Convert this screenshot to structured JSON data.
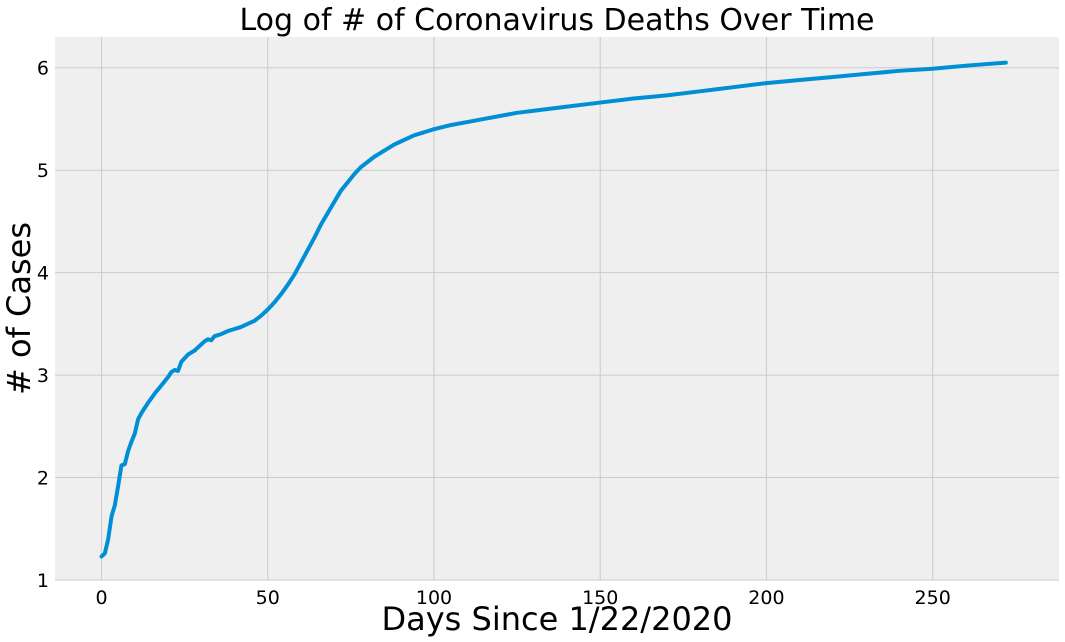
{
  "chart_data": {
    "type": "line",
    "title": "Log of # of Coronavirus Deaths Over Time",
    "xlabel": "Days Since 1/22/2020",
    "ylabel": "# of Cases",
    "xlim": [
      -14,
      288
    ],
    "ylim": [
      1,
      6.3
    ],
    "xticks": [
      0,
      50,
      100,
      150,
      200,
      250
    ],
    "yticks": [
      1,
      2,
      3,
      4,
      5,
      6
    ],
    "grid": true,
    "legend": "none",
    "colors": {
      "plot_background": "#efefef",
      "grid": "#cbcbcb",
      "line": "#008fd5"
    },
    "series": [
      {
        "x": [
          0,
          1,
          2,
          3,
          4,
          5,
          6,
          7,
          8,
          9,
          10,
          11,
          12,
          14,
          16,
          18,
          20,
          21,
          22,
          23,
          24,
          26,
          28,
          29,
          30,
          31,
          32,
          33,
          34,
          36,
          38,
          40,
          42,
          44,
          46,
          48,
          50,
          52,
          54,
          56,
          58,
          60,
          62,
          64,
          66,
          68,
          70,
          72,
          74,
          76,
          78,
          80,
          82,
          84,
          86,
          88,
          90,
          92,
          94,
          96,
          98,
          100,
          105,
          110,
          115,
          120,
          125,
          130,
          140,
          150,
          160,
          170,
          180,
          185,
          190,
          200,
          210,
          220,
          230,
          240,
          250,
          260,
          272
        ],
        "y": [
          1.23,
          1.26,
          1.4,
          1.62,
          1.73,
          1.92,
          2.12,
          2.13,
          2.26,
          2.35,
          2.43,
          2.57,
          2.63,
          2.73,
          2.82,
          2.9,
          2.98,
          3.03,
          3.05,
          3.04,
          3.13,
          3.2,
          3.24,
          3.27,
          3.3,
          3.33,
          3.35,
          3.34,
          3.38,
          3.4,
          3.43,
          3.45,
          3.47,
          3.5,
          3.53,
          3.58,
          3.64,
          3.71,
          3.79,
          3.88,
          3.98,
          4.1,
          4.22,
          4.34,
          4.47,
          4.58,
          4.69,
          4.8,
          4.88,
          4.96,
          5.03,
          5.08,
          5.13,
          5.17,
          5.21,
          5.25,
          5.28,
          5.31,
          5.34,
          5.36,
          5.38,
          5.4,
          5.44,
          5.47,
          5.5,
          5.53,
          5.56,
          5.58,
          5.62,
          5.66,
          5.7,
          5.73,
          5.77,
          5.79,
          5.81,
          5.85,
          5.88,
          5.91,
          5.94,
          5.97,
          5.99,
          6.02,
          6.05
        ]
      }
    ]
  }
}
